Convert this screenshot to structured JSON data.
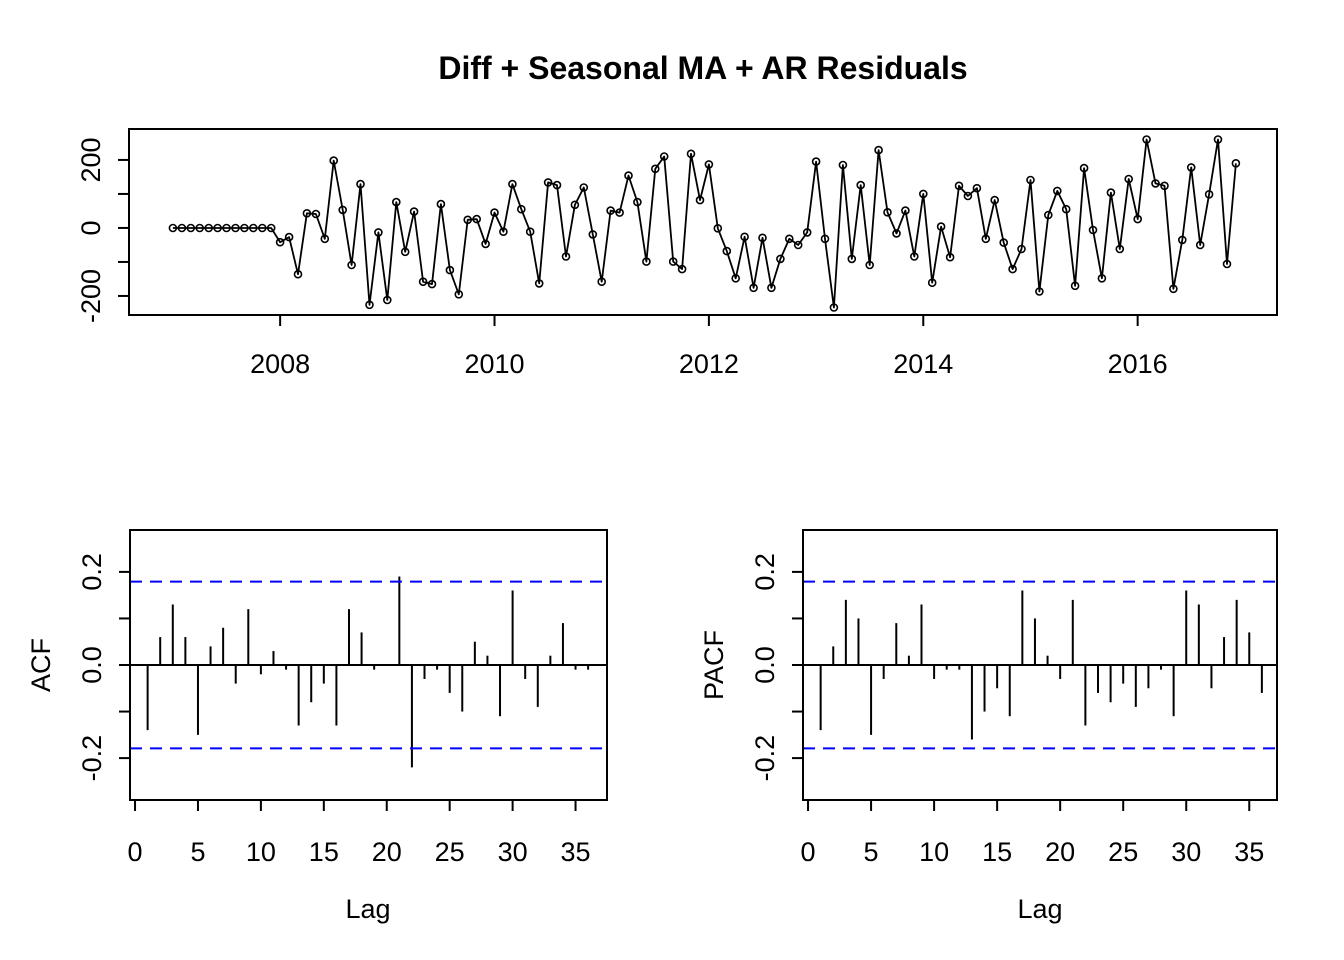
{
  "title": "Diff + Seasonal MA + AR Residuals",
  "colors": {
    "series": "#000000",
    "confidence_band": "#0000FF",
    "frame": "#000000",
    "background": "#FFFFFF"
  },
  "chart_data": [
    {
      "type": "line",
      "name": "residuals-series",
      "title": "Diff + Seasonal MA + AR Residuals",
      "xlabel": "",
      "ylabel": "",
      "start": "2007-01",
      "end": "2016-12",
      "frequency": 12,
      "marker": "open-circle",
      "xlim": [
        2006.59,
        2017.3
      ],
      "ylim": [
        -256,
        291
      ],
      "xticks": {
        "values": [
          2008,
          2010,
          2012,
          2014,
          2016
        ],
        "labels": [
          "2008",
          "2010",
          "2012",
          "2014",
          "2016"
        ]
      },
      "yticks": {
        "values": [
          -200,
          -100,
          0,
          100,
          200
        ],
        "labels": [
          "-200",
          "",
          "0",
          "",
          "200"
        ]
      },
      "values": [
        0,
        0,
        0,
        0,
        0,
        0,
        0,
        0,
        0,
        0,
        0,
        0,
        -42,
        -27,
        -136,
        43,
        41,
        -32,
        198,
        53,
        -109,
        129,
        -226,
        -13,
        -212,
        76,
        -70,
        48,
        -158,
        -165,
        70,
        -124,
        -195,
        24,
        26,
        -47,
        45,
        -11,
        129,
        55,
        -11,
        -163,
        134,
        126,
        -84,
        68,
        119,
        -19,
        -158,
        51,
        45,
        154,
        76,
        -99,
        174,
        210,
        -99,
        -121,
        218,
        82,
        187,
        -1,
        -68,
        -148,
        -26,
        -176,
        -29,
        -176,
        -91,
        -32,
        -50,
        -13,
        195,
        -32,
        -234,
        185,
        -91,
        126,
        -109,
        229,
        46,
        -16,
        51,
        -84,
        100,
        -161,
        4,
        -86,
        124,
        94,
        117,
        -32,
        82,
        -43,
        -121,
        -62,
        141,
        -187,
        38,
        109,
        55,
        -170,
        176,
        -6,
        -148,
        104,
        -62,
        144,
        26,
        260,
        131,
        124,
        -179,
        -35,
        178,
        -50,
        99,
        260,
        -106,
        190
      ]
    },
    {
      "type": "bar",
      "name": "acf",
      "ylabel": "ACF",
      "xlabel": "Lag",
      "lag_max": 36,
      "confidence_bound": 0.179,
      "xlim": [
        -0.4,
        37.5
      ],
      "ylim": [
        -0.29,
        0.29
      ],
      "xticks": {
        "values": [
          0,
          5,
          10,
          15,
          20,
          25,
          30,
          35
        ],
        "labels": [
          "0",
          "5",
          "10",
          "15",
          "20",
          "25",
          "30",
          "35"
        ]
      },
      "yticks": {
        "values": [
          -0.2,
          -0.1,
          0,
          0.1,
          0.2
        ],
        "labels": [
          "-0.2",
          "",
          "0.0",
          "",
          "0.2"
        ]
      },
      "values": [
        -0.14,
        0.06,
        0.13,
        0.06,
        -0.15,
        0.04,
        0.08,
        -0.04,
        0.12,
        -0.02,
        0.03,
        -0.01,
        -0.13,
        -0.08,
        -0.04,
        -0.13,
        0.12,
        0.07,
        -0.01,
        0.0,
        0.19,
        -0.22,
        -0.03,
        -0.01,
        -0.06,
        -0.1,
        0.05,
        0.02,
        -0.11,
        0.16,
        -0.03,
        -0.09,
        0.02,
        0.09,
        -0.01,
        -0.01
      ]
    },
    {
      "type": "bar",
      "name": "pacf",
      "ylabel": "PACF",
      "xlabel": "Lag",
      "lag_max": 36,
      "confidence_bound": 0.179,
      "xlim": [
        -0.4,
        37.2
      ],
      "ylim": [
        -0.29,
        0.29
      ],
      "xticks": {
        "values": [
          0,
          5,
          10,
          15,
          20,
          25,
          30,
          35
        ],
        "labels": [
          "0",
          "5",
          "10",
          "15",
          "20",
          "25",
          "30",
          "35"
        ]
      },
      "yticks": {
        "values": [
          -0.2,
          -0.1,
          0,
          0.1,
          0.2
        ],
        "labels": [
          "-0.2",
          "",
          "0.0",
          "",
          "0.2"
        ]
      },
      "values": [
        -0.14,
        0.04,
        0.14,
        0.1,
        -0.15,
        -0.03,
        0.09,
        0.02,
        0.13,
        -0.03,
        -0.01,
        -0.01,
        -0.16,
        -0.1,
        -0.05,
        -0.11,
        0.16,
        0.1,
        0.02,
        -0.03,
        0.14,
        -0.13,
        -0.06,
        -0.08,
        -0.04,
        -0.09,
        -0.05,
        -0.01,
        -0.11,
        0.16,
        0.13,
        -0.05,
        0.06,
        0.14,
        0.07,
        -0.06
      ]
    }
  ]
}
